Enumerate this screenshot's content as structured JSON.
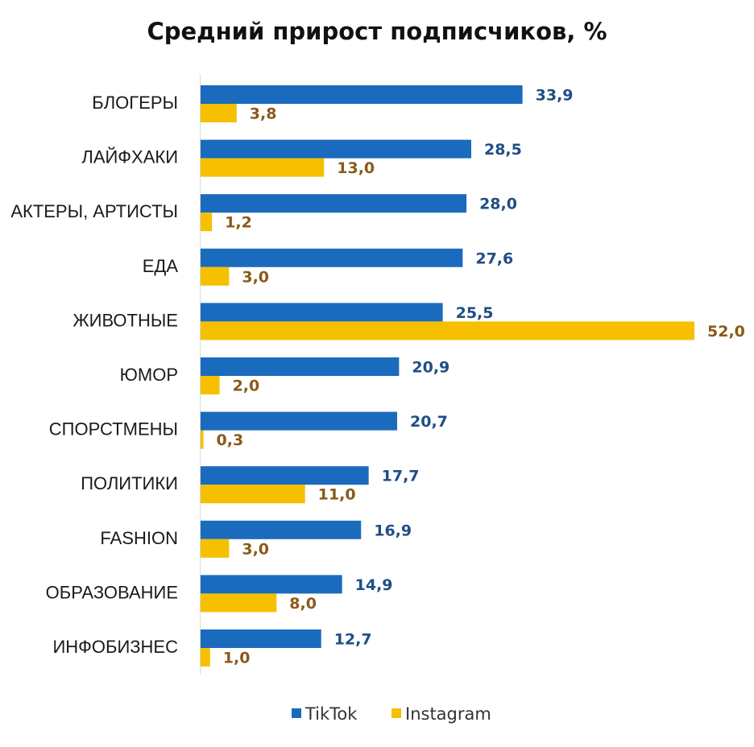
{
  "chart_data": {
    "type": "bar",
    "orientation": "horizontal",
    "title": "Средний прирост подписчиков, %",
    "categories": [
      "БЛОГЕРЫ",
      "ЛАЙФХАКИ",
      "АКТЕРЫ, АРТИСТЫ",
      "ЕДА",
      "ЖИВОТНЫЕ",
      "ЮМОР",
      "СПОРСТМЕНЫ",
      "ПОЛИТИКИ",
      "FASHION",
      "ОБРАЗОВАНИЕ",
      "ИНФОБИЗНЕС"
    ],
    "series": [
      {
        "name": "TikTok",
        "color": "#1a6bbd",
        "label_color": "#1f4e84",
        "values": [
          33.9,
          28.5,
          28.0,
          27.6,
          25.5,
          20.9,
          20.7,
          17.7,
          16.9,
          14.9,
          12.7
        ],
        "labels": [
          "33,9",
          "28,5",
          "28,0",
          "27,6",
          "25,5",
          "20,9",
          "20,7",
          "17,7",
          "16,9",
          "14,9",
          "12,7"
        ]
      },
      {
        "name": "Instagram",
        "color": "#f6c000",
        "label_color": "#8a5a1a",
        "values": [
          3.8,
          13.0,
          1.2,
          3.0,
          52.0,
          2.0,
          0.3,
          11.0,
          3.0,
          8.0,
          1.0
        ],
        "labels": [
          "3,8",
          "13,0",
          "1,2",
          "3,0",
          "52,0",
          "2,0",
          "0,3",
          "11,0",
          "3,0",
          "8,0",
          "1,0"
        ]
      }
    ],
    "xlim": [
      0,
      52
    ],
    "grid": false,
    "legend_position": "bottom"
  }
}
